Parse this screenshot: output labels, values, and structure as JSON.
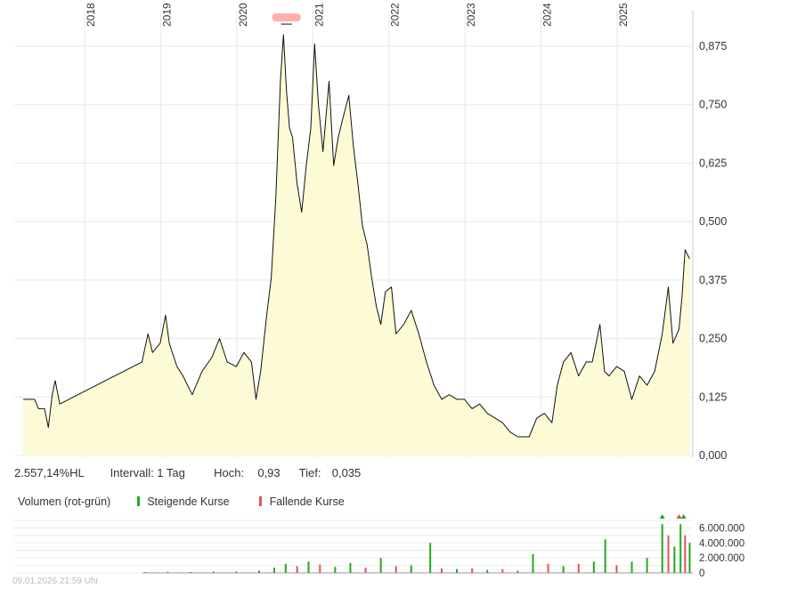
{
  "chart_data": {
    "type": "area",
    "price": {
      "x_ticks": [
        "2018",
        "2019",
        "2020",
        "2021",
        "2022",
        "2023",
        "2024",
        "2025"
      ],
      "y_ticks": [
        "0,875",
        "0,750",
        "0,625",
        "0,500",
        "0,375",
        "0,250",
        "0,125",
        "0,000"
      ],
      "ylim": [
        0,
        0.93
      ],
      "series": [
        {
          "points": [
            [
              2017.1,
              0.12
            ],
            [
              2017.25,
              0.12
            ],
            [
              2017.3,
              0.1
            ],
            [
              2017.38,
              0.1
            ],
            [
              2017.43,
              0.06
            ],
            [
              2017.48,
              0.13
            ],
            [
              2017.52,
              0.16
            ],
            [
              2017.58,
              0.11
            ],
            [
              2018.66,
              0.2
            ],
            [
              2018.74,
              0.26
            ],
            [
              2018.8,
              0.22
            ],
            [
              2018.9,
              0.24
            ],
            [
              2018.97,
              0.3
            ],
            [
              2019.02,
              0.24
            ],
            [
              2019.12,
              0.19
            ],
            [
              2019.2,
              0.17
            ],
            [
              2019.32,
              0.13
            ],
            [
              2019.45,
              0.18
            ],
            [
              2019.58,
              0.21
            ],
            [
              2019.68,
              0.25
            ],
            [
              2019.78,
              0.2
            ],
            [
              2019.9,
              0.19
            ],
            [
              2020.0,
              0.22
            ],
            [
              2020.1,
              0.2
            ],
            [
              2020.16,
              0.12
            ],
            [
              2020.22,
              0.18
            ],
            [
              2020.3,
              0.3
            ],
            [
              2020.36,
              0.38
            ],
            [
              2020.42,
              0.55
            ],
            [
              2020.48,
              0.8
            ],
            [
              2020.52,
              0.9
            ],
            [
              2020.56,
              0.78
            ],
            [
              2020.6,
              0.7
            ],
            [
              2020.64,
              0.68
            ],
            [
              2020.7,
              0.58
            ],
            [
              2020.76,
              0.52
            ],
            [
              2020.82,
              0.62
            ],
            [
              2020.88,
              0.7
            ],
            [
              2020.93,
              0.88
            ],
            [
              2020.98,
              0.75
            ],
            [
              2021.04,
              0.65
            ],
            [
              2021.12,
              0.8
            ],
            [
              2021.18,
              0.62
            ],
            [
              2021.24,
              0.68
            ],
            [
              2021.3,
              0.72
            ],
            [
              2021.38,
              0.77
            ],
            [
              2021.44,
              0.66
            ],
            [
              2021.5,
              0.58
            ],
            [
              2021.56,
              0.49
            ],
            [
              2021.62,
              0.45
            ],
            [
              2021.68,
              0.38
            ],
            [
              2021.74,
              0.32
            ],
            [
              2021.8,
              0.28
            ],
            [
              2021.86,
              0.35
            ],
            [
              2021.94,
              0.36
            ],
            [
              2022.0,
              0.26
            ],
            [
              2022.1,
              0.28
            ],
            [
              2022.2,
              0.31
            ],
            [
              2022.3,
              0.26
            ],
            [
              2022.4,
              0.2
            ],
            [
              2022.5,
              0.15
            ],
            [
              2022.6,
              0.12
            ],
            [
              2022.7,
              0.13
            ],
            [
              2022.8,
              0.12
            ],
            [
              2022.9,
              0.12
            ],
            [
              2023.0,
              0.1
            ],
            [
              2023.1,
              0.11
            ],
            [
              2023.2,
              0.09
            ],
            [
              2023.3,
              0.08
            ],
            [
              2023.4,
              0.07
            ],
            [
              2023.5,
              0.05
            ],
            [
              2023.6,
              0.04
            ],
            [
              2023.7,
              0.04
            ],
            [
              2023.75,
              0.04
            ],
            [
              2023.85,
              0.08
            ],
            [
              2023.95,
              0.09
            ],
            [
              2024.05,
              0.07
            ],
            [
              2024.12,
              0.15
            ],
            [
              2024.2,
              0.2
            ],
            [
              2024.3,
              0.22
            ],
            [
              2024.4,
              0.17
            ],
            [
              2024.5,
              0.2
            ],
            [
              2024.58,
              0.2
            ],
            [
              2024.68,
              0.28
            ],
            [
              2024.74,
              0.18
            ],
            [
              2024.8,
              0.17
            ],
            [
              2024.9,
              0.19
            ],
            [
              2025.0,
              0.18
            ],
            [
              2025.1,
              0.12
            ],
            [
              2025.2,
              0.17
            ],
            [
              2025.3,
              0.15
            ],
            [
              2025.4,
              0.18
            ],
            [
              2025.5,
              0.26
            ],
            [
              2025.58,
              0.36
            ],
            [
              2025.64,
              0.24
            ],
            [
              2025.72,
              0.27
            ],
            [
              2025.76,
              0.34
            ],
            [
              2025.8,
              0.44
            ],
            [
              2025.86,
              0.42
            ]
          ]
        }
      ],
      "high_marker": {
        "x": 2020.56,
        "y": 0.93
      }
    },
    "info": {
      "performance": "2.557,14%HL",
      "interval": "Intervall: 1 Tag",
      "high_label": "Hoch:",
      "high_value": "0,93",
      "low_label": "Tief:",
      "low_value": "0,035"
    },
    "volume": {
      "title": "Volumen (rot-grün)",
      "legend_up": "Steigende Kurse",
      "legend_down": "Fallende Kurse",
      "y_ticks": [
        "6.000.000",
        "4.000.000",
        "2.000.000",
        "0"
      ],
      "ylim": [
        0,
        7000000
      ],
      "bars": [
        [
          2018.7,
          100000,
          "up"
        ],
        [
          2019.0,
          150000,
          "down"
        ],
        [
          2019.3,
          120000,
          "up"
        ],
        [
          2019.6,
          180000,
          "up"
        ],
        [
          2019.9,
          200000,
          "down"
        ],
        [
          2020.2,
          300000,
          "up"
        ],
        [
          2020.4,
          700000,
          "up"
        ],
        [
          2020.55,
          1200000,
          "up"
        ],
        [
          2020.7,
          900000,
          "down"
        ],
        [
          2020.85,
          1500000,
          "up"
        ],
        [
          2021.0,
          1100000,
          "down"
        ],
        [
          2021.2,
          800000,
          "up"
        ],
        [
          2021.4,
          1300000,
          "up"
        ],
        [
          2021.6,
          700000,
          "down"
        ],
        [
          2021.8,
          2000000,
          "up"
        ],
        [
          2022.0,
          900000,
          "down"
        ],
        [
          2022.2,
          1000000,
          "up"
        ],
        [
          2022.45,
          4000000,
          "up"
        ],
        [
          2022.6,
          600000,
          "down"
        ],
        [
          2022.8,
          500000,
          "up"
        ],
        [
          2023.0,
          600000,
          "down"
        ],
        [
          2023.2,
          400000,
          "up"
        ],
        [
          2023.4,
          500000,
          "down"
        ],
        [
          2023.6,
          300000,
          "up"
        ],
        [
          2023.8,
          2500000,
          "up"
        ],
        [
          2024.0,
          1200000,
          "down"
        ],
        [
          2024.2,
          900000,
          "up"
        ],
        [
          2024.4,
          1200000,
          "down"
        ],
        [
          2024.6,
          1500000,
          "up"
        ],
        [
          2024.75,
          4500000,
          "up"
        ],
        [
          2024.9,
          1000000,
          "down"
        ],
        [
          2025.1,
          1500000,
          "up"
        ],
        [
          2025.3,
          2000000,
          "up"
        ],
        [
          2025.5,
          6500000,
          "up"
        ],
        [
          2025.58,
          5000000,
          "down"
        ],
        [
          2025.66,
          3500000,
          "up"
        ],
        [
          2025.74,
          6500000,
          "up"
        ],
        [
          2025.8,
          5000000,
          "down"
        ],
        [
          2025.86,
          4000000,
          "up"
        ]
      ],
      "peak_markers": [
        [
          2025.5,
          "up"
        ],
        [
          2025.72,
          "down"
        ],
        [
          2025.78,
          "up"
        ]
      ]
    },
    "colors": {
      "line": "#111111",
      "area_fill": "#fdfbd6",
      "grid": "#e8e8e8",
      "up": "#22aa22",
      "down": "#e05555",
      "high_marker": "#ff9999"
    }
  },
  "footer": {
    "timestamp": "09.01.2026 21:59 Uhr"
  }
}
